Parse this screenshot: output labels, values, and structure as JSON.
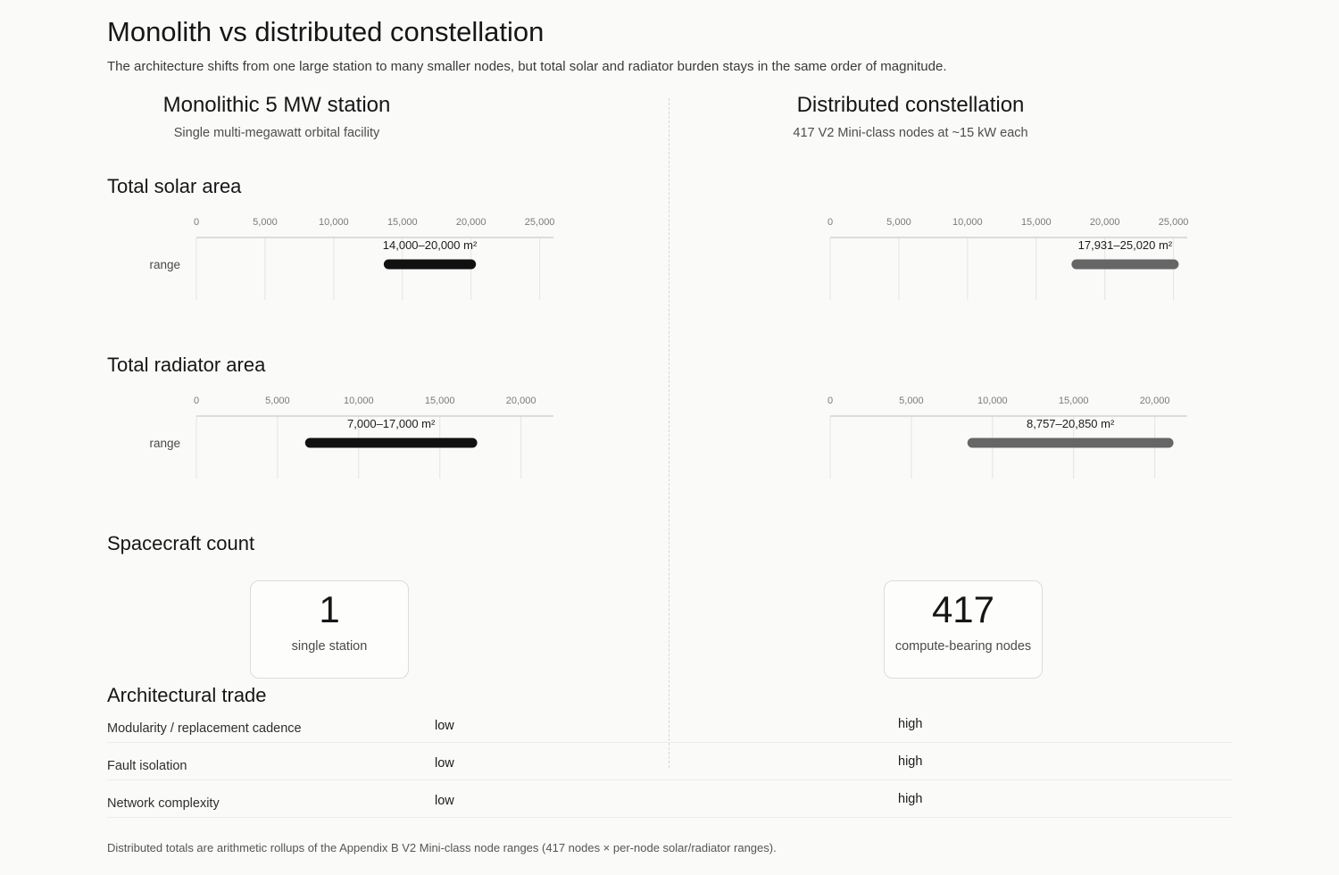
{
  "header": {
    "title": "Monolith vs distributed constellation",
    "subtitle": "The architecture shifts from one large station to many smaller nodes, but total solar and radiator burden stays in the same order of magnitude."
  },
  "columns": {
    "left": {
      "title": "Monolithic 5 MW station",
      "subtitle": "Single multi-megawatt orbital facility"
    },
    "right": {
      "title": "Distributed constellation",
      "subtitle": "417 V2 Mini-class nodes at ~15 kW each"
    }
  },
  "sections": {
    "solar": "Total solar area",
    "radiator": "Total radiator area",
    "spacecraft": "Spacecraft count",
    "trade": "Architectural trade"
  },
  "chart_data": [
    {
      "type": "bar",
      "id": "solar-monolith",
      "title": "Total solar area",
      "categories": [
        "range"
      ],
      "range": [
        14000,
        20000
      ],
      "label": "14,000–20,000 m²",
      "xlim": [
        0,
        26000
      ],
      "ticks": [
        0,
        5000,
        10000,
        15000,
        20000,
        25000
      ],
      "tick_labels": [
        "0",
        "5,000",
        "10,000",
        "15,000",
        "20,000",
        "25,000"
      ],
      "color": "#111111",
      "grid": true
    },
    {
      "type": "bar",
      "id": "solar-distributed",
      "title": "Total solar area",
      "categories": [
        ""
      ],
      "range": [
        17931,
        25020
      ],
      "label": "17,931–25,020 m²",
      "xlim": [
        0,
        26000
      ],
      "ticks": [
        0,
        5000,
        10000,
        15000,
        20000,
        25000
      ],
      "tick_labels": [
        "0",
        "5,000",
        "10,000",
        "15,000",
        "20,000",
        "25,000"
      ],
      "color": "#666666",
      "grid": true
    },
    {
      "type": "bar",
      "id": "radiator-monolith",
      "title": "Total radiator area",
      "categories": [
        "range"
      ],
      "range": [
        7000,
        17000
      ],
      "label": "7,000–17,000 m²",
      "xlim": [
        0,
        22000
      ],
      "ticks": [
        0,
        5000,
        10000,
        15000,
        20000
      ],
      "tick_labels": [
        "0",
        "5,000",
        "10,000",
        "15,000",
        "20,000"
      ],
      "color": "#111111",
      "grid": true
    },
    {
      "type": "bar",
      "id": "radiator-distributed",
      "title": "Total radiator area",
      "categories": [
        ""
      ],
      "range": [
        8757,
        20850
      ],
      "label": "8,757–20,850 m²",
      "xlim": [
        0,
        22000
      ],
      "ticks": [
        0,
        5000,
        10000,
        15000,
        20000
      ],
      "tick_labels": [
        "0",
        "5,000",
        "10,000",
        "15,000",
        "20,000"
      ],
      "color": "#666666",
      "grid": true
    }
  ],
  "cards": {
    "left": {
      "value": "1",
      "label": "single station"
    },
    "right": {
      "value": "417",
      "label": "compute-bearing nodes"
    }
  },
  "trade": [
    {
      "name": "Modularity / replacement cadence",
      "monolith": "low",
      "distributed": "high"
    },
    {
      "name": "Fault isolation",
      "monolith": "low",
      "distributed": "high"
    },
    {
      "name": "Network complexity",
      "monolith": "low",
      "distributed": "high"
    }
  ],
  "footnote": "Distributed totals are arithmetic rollups of the Appendix B V2 Mini-class node ranges (417 nodes × per-node solar/radiator ranges)."
}
